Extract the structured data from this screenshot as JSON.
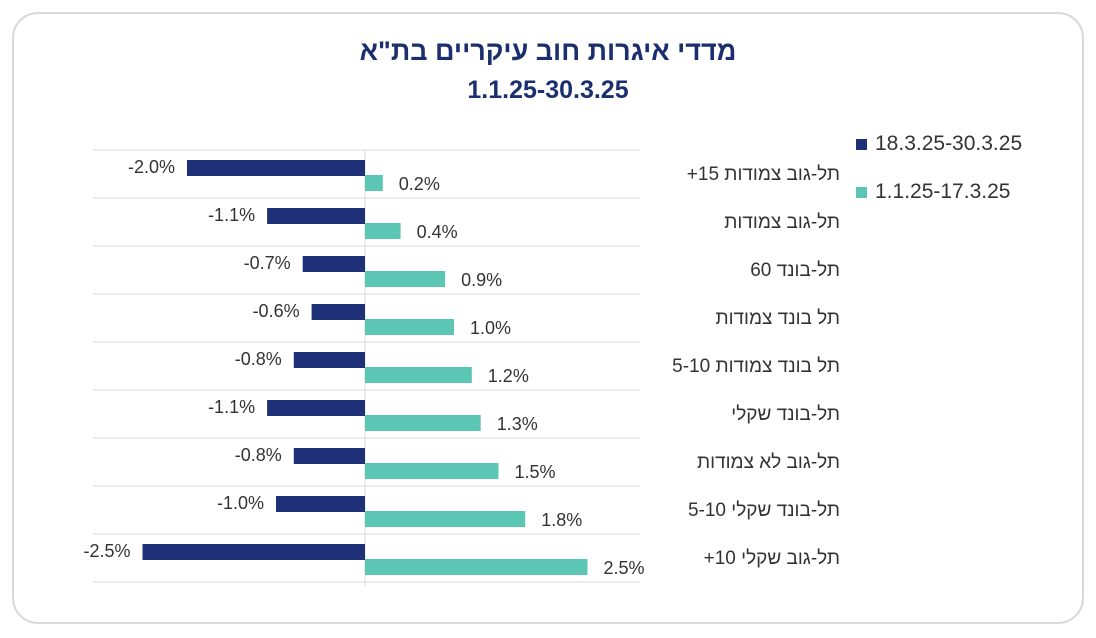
{
  "title": {
    "line1": "מדדי איגרות חוב עיקריים בת\"א",
    "line2": "1.1.25-30.3.25"
  },
  "colors": {
    "series_dark": "#1e3178",
    "series_teal": "#5cc6b4"
  },
  "legend": [
    {
      "label": "18.3.25-30.3.25",
      "color": "#1e3178"
    },
    {
      "label": "1.1.25-17.3.25",
      "color": "#5cc6b4"
    }
  ],
  "chart_data": {
    "type": "bar",
    "orientation": "horizontal",
    "categories": [
      "תל-גוב צמודות 15+",
      "תל-גוב צמודות",
      "תל-בונד 60",
      "תל בונד צמודות",
      "תל בונד צמודות 5-10",
      "תל-בונד שקלי",
      "תל-גוב לא צמודות",
      "תל-בונד שקלי 5-10",
      "תל-גוב שקלי 10+"
    ],
    "series": [
      {
        "name": "18.3.25-30.3.25",
        "values": [
          -2.0,
          -1.1,
          -0.7,
          -0.6,
          -0.8,
          -1.1,
          -0.8,
          -1.0,
          -2.5
        ],
        "labels": [
          "-2.0%",
          "-1.1%",
          "-0.7%",
          "-0.6%",
          "-0.8%",
          "-1.1%",
          "-0.8%",
          "-1.0%",
          "-2.5%"
        ]
      },
      {
        "name": "1.1.25-17.3.25",
        "values": [
          0.2,
          0.4,
          0.9,
          1.0,
          1.2,
          1.3,
          1.5,
          1.8,
          2.5
        ],
        "labels": [
          "0.2%",
          "0.4%",
          "0.9%",
          "1.0%",
          "1.2%",
          "1.3%",
          "1.5%",
          "1.8%",
          "2.5%"
        ]
      }
    ],
    "grid": true,
    "legend_position": "top-right"
  }
}
